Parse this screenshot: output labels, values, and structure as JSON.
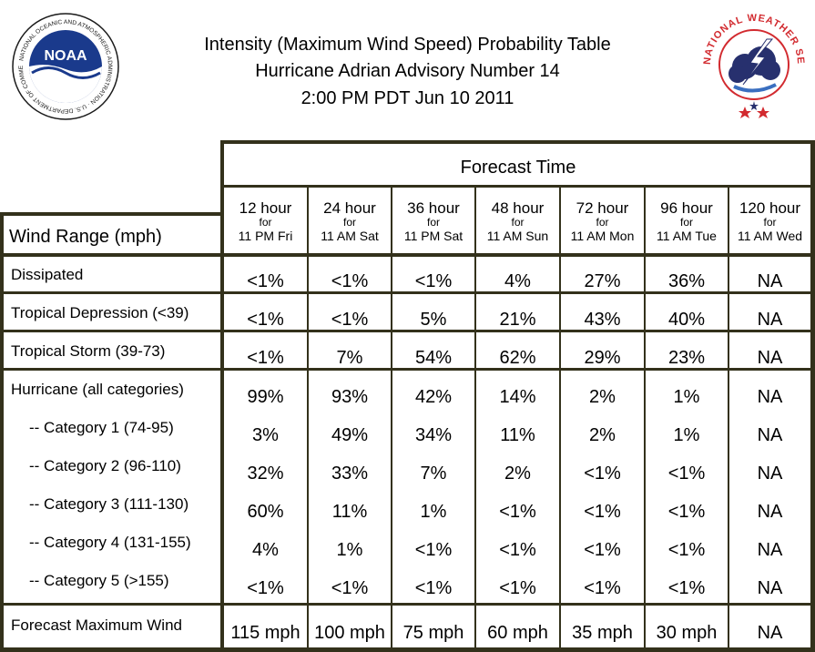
{
  "header": {
    "title_line1": "Intensity (Maximum Wind Speed) Probability Table",
    "title_line2": "Hurricane Adrian Advisory Number 14",
    "title_line3": "2:00 PM PDT Jun 10 2011",
    "noaa_logo_text": "NOAA",
    "noaa_ring_text": "NATIONAL OCEANIC AND ATMOSPHERIC ADMINISTRATION · U.S. DEPARTMENT OF COMMERCE",
    "nws_ring_text": "NATIONAL WEATHER SERVICE"
  },
  "table": {
    "forecast_time_label": "Forecast Time",
    "wind_range_label": "Wind Range (mph)",
    "columns": [
      {
        "hours": "12 hour",
        "for": "for",
        "time": "11 PM Fri"
      },
      {
        "hours": "24 hour",
        "for": "for",
        "time": "11 AM Sat"
      },
      {
        "hours": "36 hour",
        "for": "for",
        "time": "11 PM Sat"
      },
      {
        "hours": "48 hour",
        "for": "for",
        "time": "11 AM Sun"
      },
      {
        "hours": "72 hour",
        "for": "for",
        "time": "11 AM Mon"
      },
      {
        "hours": "96 hour",
        "for": "for",
        "time": "11 AM Tue"
      },
      {
        "hours": "120 hour",
        "for": "for",
        "time": "11 AM Wed"
      }
    ],
    "rows": [
      {
        "label": "Dissipated",
        "values": [
          "<1%",
          "<1%",
          "<1%",
          "4%",
          "27%",
          "36%",
          "NA"
        ]
      },
      {
        "label": "Tropical Depression (<39)",
        "values": [
          "<1%",
          "<1%",
          "5%",
          "21%",
          "43%",
          "40%",
          "NA"
        ]
      },
      {
        "label": "Tropical Storm (39-73)",
        "values": [
          "<1%",
          "7%",
          "54%",
          "62%",
          "29%",
          "23%",
          "NA"
        ]
      },
      {
        "label": "Hurricane (all categories)",
        "values": [
          "99%",
          "93%",
          "42%",
          "14%",
          "2%",
          "1%",
          "NA"
        ]
      },
      {
        "label": "-- Category 1 (74-95)",
        "values": [
          "3%",
          "49%",
          "34%",
          "11%",
          "2%",
          "1%",
          "NA"
        ]
      },
      {
        "label": "-- Category 2 (96-110)",
        "values": [
          "32%",
          "33%",
          "7%",
          "2%",
          "<1%",
          "<1%",
          "NA"
        ]
      },
      {
        "label": "-- Category 3 (111-130)",
        "values": [
          "60%",
          "11%",
          "1%",
          "<1%",
          "<1%",
          "<1%",
          "NA"
        ]
      },
      {
        "label": "-- Category 4 (131-155)",
        "values": [
          "4%",
          "1%",
          "<1%",
          "<1%",
          "<1%",
          "<1%",
          "NA"
        ]
      },
      {
        "label": "-- Category 5 (>155)",
        "values": [
          "<1%",
          "<1%",
          "<1%",
          "<1%",
          "<1%",
          "<1%",
          "NA"
        ]
      },
      {
        "label": "Forecast Maximum Wind",
        "values": [
          "115 mph",
          "100 mph",
          "75 mph",
          "60 mph",
          "35 mph",
          "30 mph",
          "NA"
        ]
      }
    ]
  },
  "colors": {
    "border": "#33311b",
    "noaa_blue": "#1a3a8c",
    "nws_red": "#d22a2f",
    "nws_navy": "#27306e"
  }
}
